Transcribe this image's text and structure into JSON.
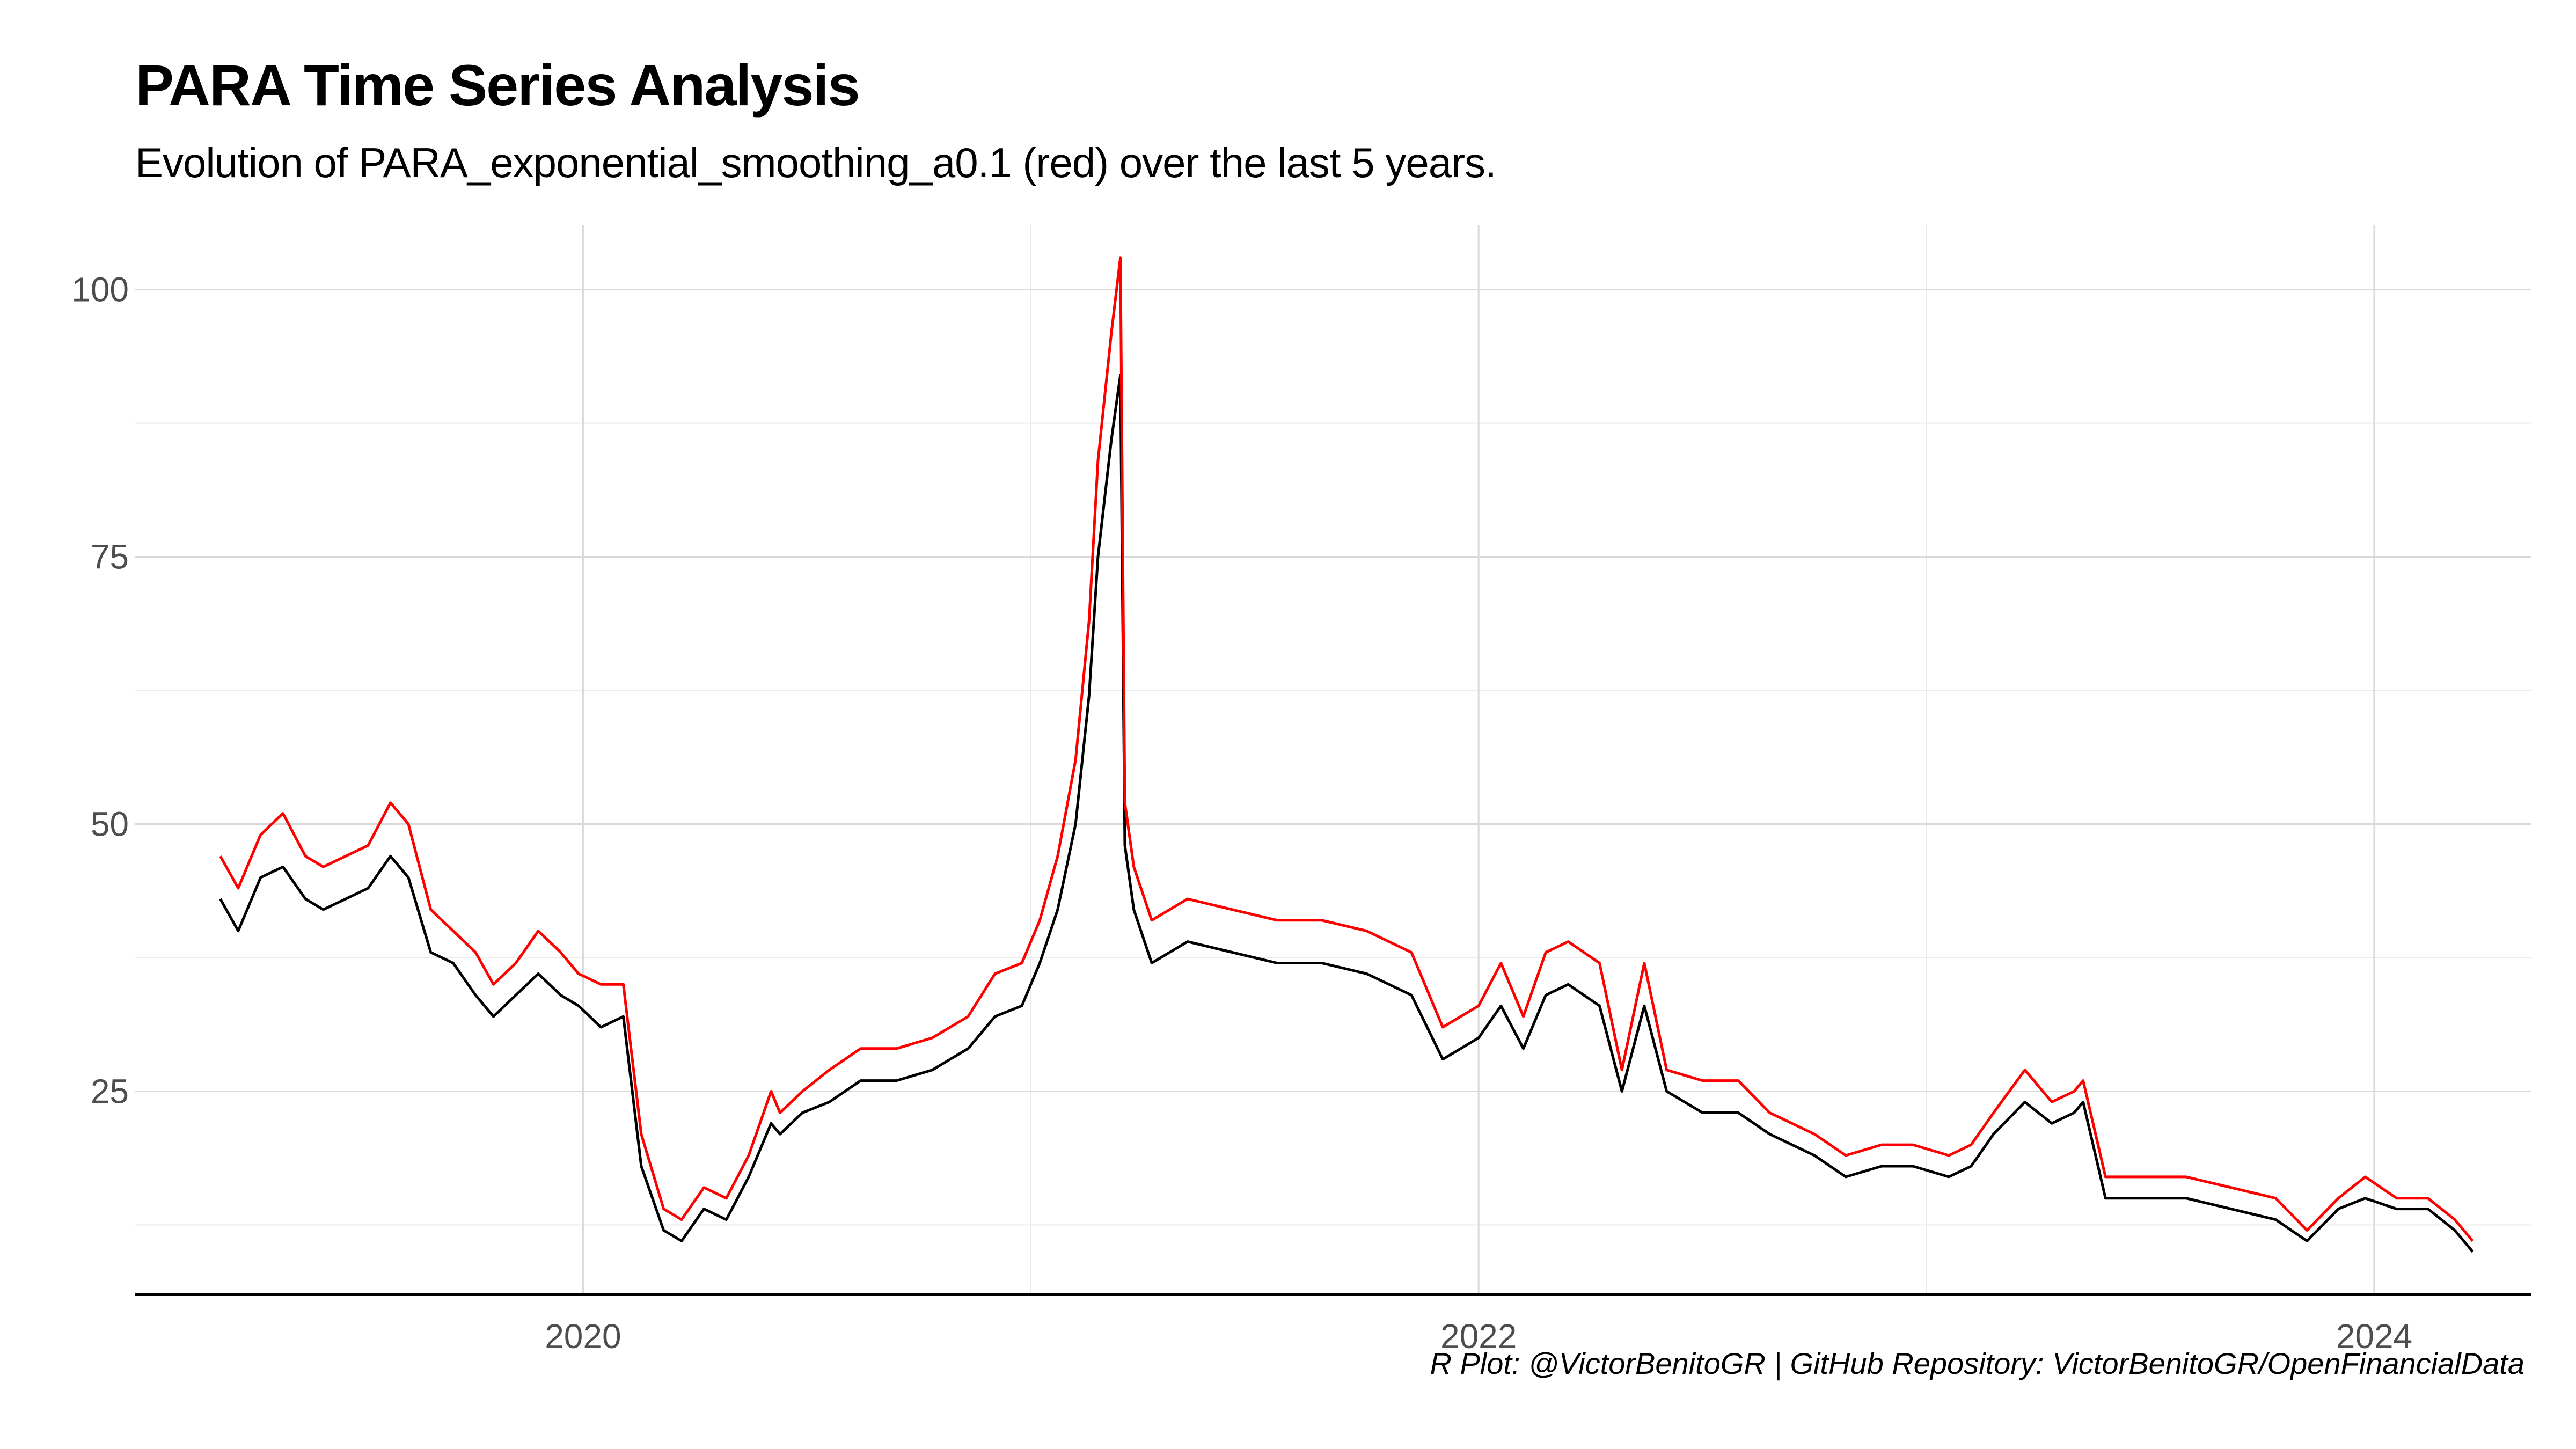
{
  "title": "PARA Time Series Analysis",
  "subtitle": "Evolution of PARA_exponential_smoothing_a0.1  (red) over the last 5 years.",
  "caption": "R Plot: @VictorBenitoGR | GitHub Repository:  VictorBenitoGR/OpenFinancialData",
  "chart_data": {
    "type": "line",
    "title": "PARA Time Series Analysis",
    "xlabel": "",
    "ylabel": "",
    "x_range": [
      2019.0,
      2024.35
    ],
    "ylim": [
      6,
      106
    ],
    "x_ticks": [
      2020,
      2022,
      2024
    ],
    "x_tick_labels": [
      "2020",
      "2022",
      "2024"
    ],
    "y_ticks": [
      25,
      50,
      75,
      100
    ],
    "y_tick_labels": [
      "25",
      "50",
      "75",
      "100"
    ],
    "grid": true,
    "legend": "none",
    "colors": {
      "series_price": "#000000",
      "series_smooth": "#ff0000"
    },
    "series": [
      {
        "x": [
          2019.19,
          2019.23,
          2019.28,
          2019.33,
          2019.38,
          2019.42,
          2019.47,
          2019.52,
          2019.57,
          2019.61,
          2019.66,
          2019.71,
          2019.76,
          2019.8,
          2019.85,
          2019.9,
          2019.95,
          2019.99,
          2020.04,
          2020.09,
          2020.13,
          2020.18,
          2020.22,
          2020.27,
          2020.32,
          2020.37,
          2020.42,
          2020.44,
          2020.49,
          2020.55,
          2020.62,
          2020.7,
          2020.78,
          2020.86,
          2020.92,
          2020.98,
          2021.02,
          2021.06,
          2021.1,
          2021.13,
          2021.15,
          2021.18,
          2021.2,
          2021.21,
          2021.23,
          2021.27,
          2021.35,
          2021.45,
          2021.55,
          2021.65,
          2021.75,
          2021.85,
          2021.92,
          2022.0,
          2022.05,
          2022.1,
          2022.15,
          2022.2,
          2022.27,
          2022.32,
          2022.37,
          2022.42,
          2022.5,
          2022.58,
          2022.65,
          2022.75,
          2022.82,
          2022.9,
          2022.97,
          2023.05,
          2023.1,
          2023.15,
          2023.22,
          2023.28,
          2023.33,
          2023.35,
          2023.4,
          2023.48,
          2023.58,
          2023.68,
          2023.78,
          2023.85,
          2023.92,
          2023.98,
          2024.05,
          2024.12,
          2024.18,
          2024.22
        ],
        "values": [
          43,
          40,
          45,
          46,
          43,
          42,
          43,
          44,
          47,
          45,
          38,
          37,
          34,
          32,
          34,
          36,
          34,
          33,
          31,
          32,
          18,
          12,
          11,
          14,
          13,
          17,
          22,
          21,
          23,
          24,
          26,
          26,
          27,
          29,
          32,
          33,
          37,
          42,
          50,
          62,
          75,
          86,
          92,
          48,
          42,
          37,
          39,
          38,
          37,
          37,
          36,
          34,
          28,
          30,
          33,
          29,
          34,
          35,
          33,
          25,
          33,
          25,
          23,
          23,
          21,
          19,
          17,
          18,
          18,
          17,
          18,
          21,
          24,
          22,
          23,
          24,
          15,
          15,
          15,
          14,
          13,
          11,
          14,
          15,
          14,
          14,
          12,
          10
        ]
      },
      {
        "x": [
          2019.19,
          2019.23,
          2019.28,
          2019.33,
          2019.38,
          2019.42,
          2019.47,
          2019.52,
          2019.57,
          2019.61,
          2019.66,
          2019.71,
          2019.76,
          2019.8,
          2019.85,
          2019.9,
          2019.95,
          2019.99,
          2020.04,
          2020.09,
          2020.13,
          2020.18,
          2020.22,
          2020.27,
          2020.32,
          2020.37,
          2020.42,
          2020.44,
          2020.49,
          2020.55,
          2020.62,
          2020.7,
          2020.78,
          2020.86,
          2020.92,
          2020.98,
          2021.02,
          2021.06,
          2021.1,
          2021.13,
          2021.15,
          2021.18,
          2021.2,
          2021.21,
          2021.23,
          2021.27,
          2021.35,
          2021.45,
          2021.55,
          2021.65,
          2021.75,
          2021.85,
          2021.92,
          2022.0,
          2022.05,
          2022.1,
          2022.15,
          2022.2,
          2022.27,
          2022.32,
          2022.37,
          2022.42,
          2022.5,
          2022.58,
          2022.65,
          2022.75,
          2022.82,
          2022.9,
          2022.97,
          2023.05,
          2023.1,
          2023.15,
          2023.22,
          2023.28,
          2023.33,
          2023.35,
          2023.4,
          2023.48,
          2023.58,
          2023.68,
          2023.78,
          2023.85,
          2023.92,
          2023.98,
          2024.05,
          2024.12,
          2024.18,
          2024.22
        ],
        "values": [
          47,
          44,
          49,
          51,
          47,
          46,
          47,
          48,
          52,
          50,
          42,
          40,
          38,
          35,
          37,
          40,
          38,
          36,
          35,
          35,
          21,
          14,
          13,
          16,
          15,
          19,
          25,
          23,
          25,
          27,
          29,
          29,
          30,
          32,
          36,
          37,
          41,
          47,
          56,
          69,
          84,
          96,
          103,
          52,
          46,
          41,
          43,
          42,
          41,
          41,
          40,
          38,
          31,
          33,
          37,
          32,
          38,
          39,
          37,
          27,
          37,
          27,
          26,
          26,
          23,
          21,
          19,
          20,
          20,
          19,
          20,
          23,
          27,
          24,
          25,
          26,
          17,
          17,
          17,
          16,
          15,
          12,
          15,
          17,
          15,
          15,
          13,
          11
        ]
      }
    ]
  }
}
